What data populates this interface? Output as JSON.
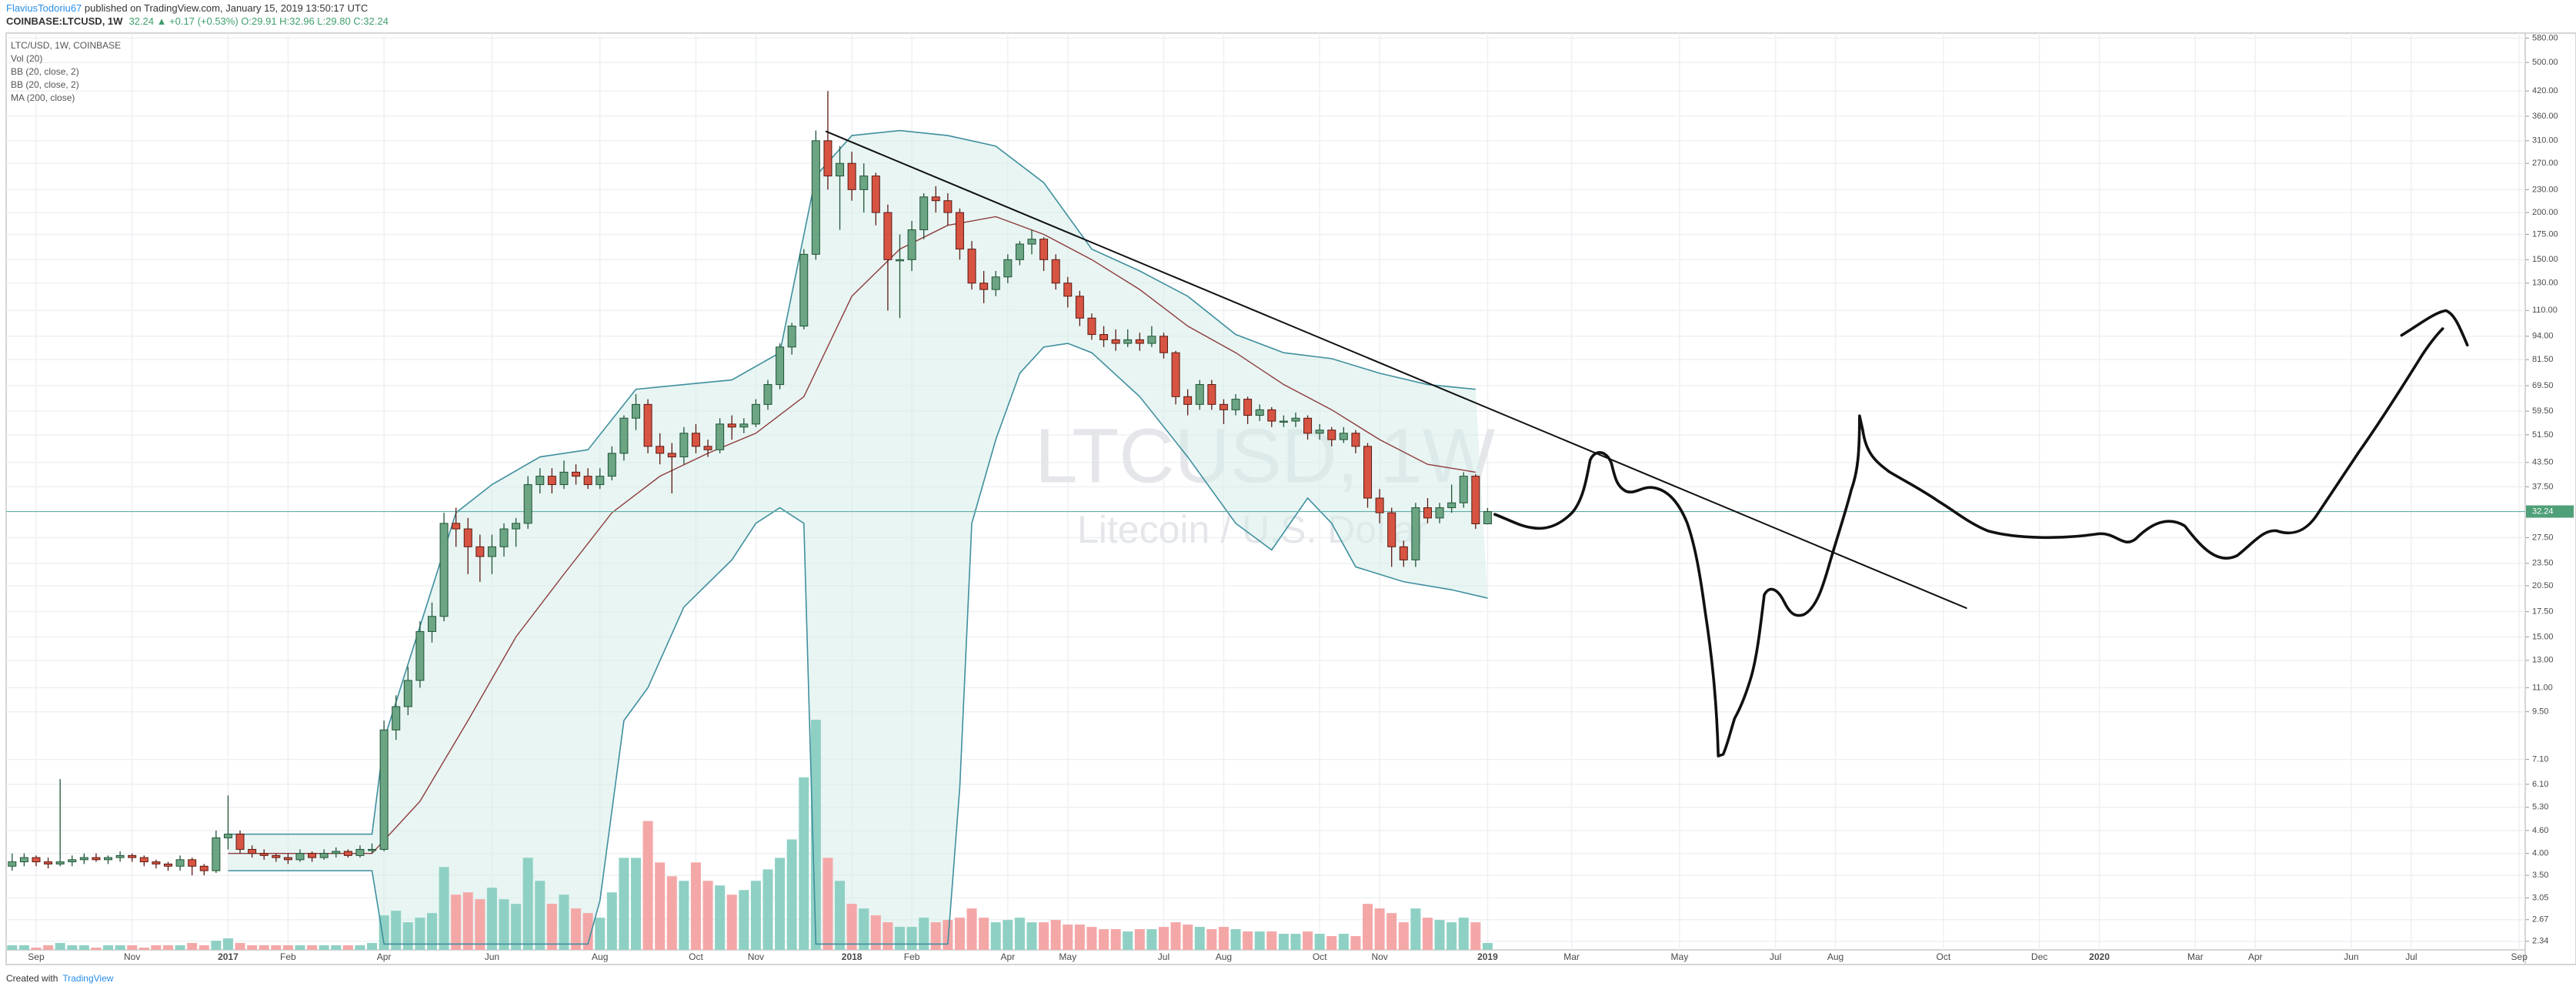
{
  "header": {
    "author": "FlaviusTodoriu67",
    "published": " published on TradingView.com, January 15, 2019 13:50:17 UTC",
    "symbol": "COINBASE:LTCUSD, 1W",
    "quote": "32.24 ▲ +0.17 (+0.53%) O:29.91 H:32.96 L:29.80 C:32.24"
  },
  "footer": {
    "prefix": "Created with",
    "brand": "TradingView"
  },
  "chart_data": {
    "type": "candlestick",
    "legend": [
      "LTC/USD, 1W, COINBASE",
      "Vol (20)",
      "BB (20, close, 2)",
      "BB (20, close, 2)",
      "MA (200, close)"
    ],
    "watermark": {
      "symbol": "LTCUSD, 1W",
      "description": "Litecoin / U.S. Dollar"
    },
    "log_scale": true,
    "grid": true,
    "up_color": "#6ba583",
    "down_color": "#d75442",
    "vol_up_color": "#8fd0c4",
    "vol_down_color": "#f4a7a7",
    "band_color": "#3f8f9e",
    "basis_color": "#8e3b3b",
    "band_fill": "#d6ece9",
    "price_line_color": "#5fb0a7",
    "xlim": [
      -0.5,
      209.5
    ],
    "xticks": [
      {
        "value": 2,
        "label": "Sep"
      },
      {
        "value": 10,
        "label": "Nov"
      },
      {
        "value": 18,
        "label": "2017"
      },
      {
        "value": 23,
        "label": "Feb"
      },
      {
        "value": 31,
        "label": "Apr"
      },
      {
        "value": 40,
        "label": "Jun"
      },
      {
        "value": 49,
        "label": "Aug"
      },
      {
        "value": 57,
        "label": "Oct"
      },
      {
        "value": 62,
        "label": "Nov"
      },
      {
        "value": 70,
        "label": "2018"
      },
      {
        "value": 75,
        "label": "Feb"
      },
      {
        "value": 83,
        "label": "Apr"
      },
      {
        "value": 88,
        "label": "May"
      },
      {
        "value": 96,
        "label": "Jul"
      },
      {
        "value": 101,
        "label": "Aug"
      },
      {
        "value": 109,
        "label": "Oct"
      },
      {
        "value": 114,
        "label": "Nov"
      },
      {
        "value": 123,
        "label": "2019"
      },
      {
        "value": 130,
        "label": "Mar"
      },
      {
        "value": 139,
        "label": "May"
      },
      {
        "value": 147,
        "label": "Jul"
      },
      {
        "value": 152,
        "label": "Aug"
      },
      {
        "value": 161,
        "label": "Oct"
      },
      {
        "value": 169,
        "label": "Dec"
      },
      {
        "value": 174,
        "label": "2020"
      },
      {
        "value": 182,
        "label": "Mar"
      },
      {
        "value": 187,
        "label": "Apr"
      },
      {
        "value": 195,
        "label": "Jun"
      },
      {
        "value": 200,
        "label": "Jul"
      },
      {
        "value": 209,
        "label": "Sep"
      }
    ],
    "ylim": [
      2.22,
      598
    ],
    "yticks": [
      {
        "value": 580,
        "label": "580.00"
      },
      {
        "value": 500,
        "label": "500.00"
      },
      {
        "value": 420,
        "label": "420.00"
      },
      {
        "value": 360,
        "label": "360.00"
      },
      {
        "value": 310,
        "label": "310.00"
      },
      {
        "value": 270,
        "label": "270.00"
      },
      {
        "value": 230,
        "label": "230.00"
      },
      {
        "value": 200,
        "label": "200.00"
      },
      {
        "value": 175,
        "label": "175.00"
      },
      {
        "value": 150,
        "label": "150.00"
      },
      {
        "value": 130,
        "label": "130.00"
      },
      {
        "value": 110,
        "label": "110.00"
      },
      {
        "value": 94,
        "label": "94.00"
      },
      {
        "value": 81.5,
        "label": "81.50"
      },
      {
        "value": 69.5,
        "label": "69.50"
      },
      {
        "value": 59.5,
        "label": "59.50"
      },
      {
        "value": 51.5,
        "label": "51.50"
      },
      {
        "value": 43.5,
        "label": "43.50"
      },
      {
        "value": 37.5,
        "label": "37.50"
      },
      {
        "value": 27.5,
        "label": "27.50"
      },
      {
        "value": 23.5,
        "label": "23.50"
      },
      {
        "value": 20.5,
        "label": "20.50"
      },
      {
        "value": 17.5,
        "label": "17.50"
      },
      {
        "value": 15,
        "label": "15.00"
      },
      {
        "value": 13,
        "label": "13.00"
      },
      {
        "value": 11,
        "label": "11.00"
      },
      {
        "value": 9.5,
        "label": "9.50"
      },
      {
        "value": 7.1,
        "label": "7.10"
      },
      {
        "value": 6.1,
        "label": "6.10"
      },
      {
        "value": 5.3,
        "label": "5.30"
      },
      {
        "value": 4.6,
        "label": "4.60"
      },
      {
        "value": 4,
        "label": "4.00"
      },
      {
        "value": 3.5,
        "label": "3.50"
      },
      {
        "value": 3.05,
        "label": "3.05"
      },
      {
        "value": 2.67,
        "label": "2.67"
      },
      {
        "value": 2.34,
        "label": "2.34"
      }
    ],
    "last_price": 32.24,
    "candles": [
      [
        3.7,
        4.0,
        3.6,
        3.8
      ],
      [
        3.8,
        4.0,
        3.7,
        3.9
      ],
      [
        3.9,
        3.95,
        3.7,
        3.8
      ],
      [
        3.8,
        3.9,
        3.65,
        3.75
      ],
      [
        3.75,
        6.3,
        3.7,
        3.8
      ],
      [
        3.8,
        3.95,
        3.7,
        3.85
      ],
      [
        3.85,
        4.0,
        3.75,
        3.9
      ],
      [
        3.9,
        4.0,
        3.8,
        3.85
      ],
      [
        3.85,
        3.95,
        3.75,
        3.9
      ],
      [
        3.9,
        4.05,
        3.8,
        3.95
      ],
      [
        3.95,
        4.0,
        3.8,
        3.9
      ],
      [
        3.9,
        3.95,
        3.7,
        3.8
      ],
      [
        3.8,
        3.85,
        3.65,
        3.75
      ],
      [
        3.75,
        3.8,
        3.6,
        3.7
      ],
      [
        3.7,
        3.95,
        3.6,
        3.85
      ],
      [
        3.85,
        3.9,
        3.5,
        3.7
      ],
      [
        3.7,
        3.75,
        3.5,
        3.6
      ],
      [
        3.6,
        4.6,
        3.55,
        4.4
      ],
      [
        4.4,
        5.7,
        4.1,
        4.5
      ],
      [
        4.5,
        4.6,
        4.0,
        4.1
      ],
      [
        4.1,
        4.2,
        3.9,
        4.0
      ],
      [
        4.0,
        4.1,
        3.85,
        3.95
      ],
      [
        3.95,
        4.0,
        3.8,
        3.9
      ],
      [
        3.9,
        4.0,
        3.75,
        3.85
      ],
      [
        3.85,
        4.1,
        3.8,
        4.0
      ],
      [
        4.0,
        4.05,
        3.8,
        3.9
      ],
      [
        3.9,
        4.1,
        3.85,
        4.0
      ],
      [
        4.0,
        4.15,
        3.9,
        4.05
      ],
      [
        4.05,
        4.1,
        3.9,
        3.95
      ],
      [
        3.95,
        4.2,
        3.9,
        4.1
      ],
      [
        4.1,
        4.25,
        4.0,
        4.1
      ],
      [
        4.1,
        9.0,
        4.05,
        8.5
      ],
      [
        8.5,
        10.5,
        8.0,
        9.8
      ],
      [
        9.8,
        12.5,
        9.3,
        11.5
      ],
      [
        11.5,
        16.5,
        11.0,
        15.5
      ],
      [
        15.5,
        18.5,
        14.5,
        17.0
      ],
      [
        17.0,
        32,
        16.5,
        30
      ],
      [
        30,
        33,
        26,
        29
      ],
      [
        29,
        31,
        22,
        26
      ],
      [
        26,
        28,
        21,
        24.5
      ],
      [
        24.5,
        28,
        22,
        26
      ],
      [
        26,
        30,
        24.5,
        29
      ],
      [
        29,
        31,
        26,
        30
      ],
      [
        30,
        40,
        29,
        38
      ],
      [
        38,
        42,
        36,
        40
      ],
      [
        40,
        42,
        36,
        38
      ],
      [
        38,
        44,
        37,
        41
      ],
      [
        41,
        43,
        38,
        40
      ],
      [
        40,
        42,
        37,
        38
      ],
      [
        38,
        42,
        37,
        40
      ],
      [
        40,
        48,
        39,
        46
      ],
      [
        46,
        58,
        44,
        57
      ],
      [
        57,
        66,
        53,
        62
      ],
      [
        62,
        64,
        46,
        48
      ],
      [
        48,
        52,
        43,
        46
      ],
      [
        46,
        49,
        36,
        45
      ],
      [
        45,
        54,
        43,
        52
      ],
      [
        52,
        55,
        46,
        48
      ],
      [
        48,
        50,
        45,
        47
      ],
      [
        47,
        57,
        46,
        55
      ],
      [
        55,
        58,
        50,
        54
      ],
      [
        54,
        57,
        52,
        55
      ],
      [
        55,
        64,
        54,
        62
      ],
      [
        62,
        72,
        60,
        70
      ],
      [
        70,
        90,
        68,
        88
      ],
      [
        88,
        102,
        84,
        100
      ],
      [
        100,
        160,
        98,
        155
      ],
      [
        155,
        330,
        150,
        310
      ],
      [
        310,
        420,
        230,
        250
      ],
      [
        250,
        300,
        180,
        270
      ],
      [
        270,
        290,
        215,
        230
      ],
      [
        230,
        270,
        200,
        250
      ],
      [
        250,
        255,
        185,
        200
      ],
      [
        200,
        210,
        110,
        150
      ],
      [
        150,
        175,
        105,
        150
      ],
      [
        150,
        190,
        140,
        180
      ],
      [
        180,
        225,
        170,
        220
      ],
      [
        220,
        235,
        200,
        215
      ],
      [
        215,
        225,
        185,
        200
      ],
      [
        200,
        205,
        150,
        160
      ],
      [
        160,
        168,
        125,
        130
      ],
      [
        130,
        140,
        115,
        125
      ],
      [
        125,
        140,
        120,
        135
      ],
      [
        135,
        155,
        130,
        150
      ],
      [
        150,
        168,
        145,
        165
      ],
      [
        165,
        180,
        155,
        170
      ],
      [
        170,
        172,
        140,
        150
      ],
      [
        150,
        155,
        125,
        130
      ],
      [
        130,
        135,
        112,
        120
      ],
      [
        120,
        124,
        100,
        105
      ],
      [
        105,
        108,
        92,
        95
      ],
      [
        95,
        100,
        88,
        92
      ],
      [
        92,
        98,
        86,
        90
      ],
      [
        90,
        98,
        88,
        92
      ],
      [
        92,
        96,
        86,
        90
      ],
      [
        90,
        100,
        88,
        94
      ],
      [
        94,
        96,
        82,
        85
      ],
      [
        85,
        86,
        62,
        65
      ],
      [
        65,
        68,
        58,
        62
      ],
      [
        62,
        72,
        60,
        70
      ],
      [
        70,
        72,
        60,
        62
      ],
      [
        62,
        64,
        55,
        60
      ],
      [
        60,
        66,
        58,
        64
      ],
      [
        64,
        65,
        55,
        58
      ],
      [
        58,
        62,
        56,
        60
      ],
      [
        60,
        61,
        54,
        56
      ],
      [
        56,
        58,
        54,
        56
      ],
      [
        56,
        59,
        54,
        57
      ],
      [
        57,
        58,
        50,
        52
      ],
      [
        52,
        55,
        50,
        53
      ],
      [
        53,
        54,
        48,
        50
      ],
      [
        50,
        54,
        49,
        52
      ],
      [
        52,
        53,
        46,
        48
      ],
      [
        48,
        49,
        33,
        35
      ],
      [
        35,
        37,
        30,
        32
      ],
      [
        32,
        33,
        23,
        26
      ],
      [
        26,
        27,
        23,
        24
      ],
      [
        24,
        34,
        23,
        33
      ],
      [
        33,
        35,
        30,
        31
      ],
      [
        31,
        34,
        30,
        33
      ],
      [
        33,
        38,
        32,
        34
      ],
      [
        34,
        41,
        33,
        40
      ],
      [
        40,
        40.5,
        29,
        29.91
      ],
      [
        29.91,
        32.96,
        29.8,
        32.24
      ]
    ],
    "volume": [
      2,
      2,
      1,
      2,
      3,
      2,
      2,
      1,
      2,
      2,
      2,
      1,
      2,
      2,
      2,
      3,
      2,
      4,
      5,
      3,
      2,
      2,
      2,
      2,
      2,
      2,
      2,
      2,
      2,
      2,
      3,
      15,
      17,
      12,
      14,
      16,
      36,
      24,
      25,
      22,
      27,
      22,
      20,
      40,
      30,
      20,
      24,
      18,
      16,
      14,
      25,
      40,
      40,
      56,
      38,
      32,
      30,
      38,
      30,
      28,
      24,
      26,
      30,
      35,
      40,
      48,
      75,
      100,
      40,
      30,
      20,
      18,
      15,
      12,
      10,
      10,
      14,
      12,
      13,
      14,
      18,
      14,
      12,
      13,
      14,
      12,
      12,
      13,
      11,
      11,
      10,
      9,
      9,
      8,
      9,
      9,
      10,
      12,
      11,
      10,
      9,
      10,
      9,
      8,
      8,
      8,
      7,
      7,
      8,
      7,
      6,
      7,
      6,
      20,
      18,
      16,
      12,
      18,
      14,
      13,
      12,
      14,
      12,
      3
    ],
    "bb_upper": {
      "x": [
        18,
        22,
        26,
        30,
        31,
        34,
        37,
        40,
        44,
        48,
        52,
        56,
        60,
        64,
        67,
        70,
        74,
        78,
        82,
        86,
        90,
        94,
        98,
        102,
        106,
        110,
        114,
        118,
        122
      ],
      "values": [
        4.5,
        4.5,
        4.5,
        4.5,
        8,
        16,
        32,
        38,
        45,
        47,
        68,
        70,
        72,
        85,
        250,
        320,
        330,
        320,
        300,
        240,
        160,
        140,
        120,
        95,
        85,
        82,
        75,
        70,
        68
      ]
    },
    "bb_lower": {
      "x": [
        18,
        22,
        26,
        30,
        31,
        48,
        49,
        51,
        53,
        56,
        60,
        62,
        64,
        66,
        67,
        78,
        79,
        80,
        82,
        84,
        86,
        88,
        90,
        94,
        98,
        102,
        105,
        108,
        110,
        112,
        116,
        120,
        123
      ],
      "values": [
        3.6,
        3.6,
        3.6,
        3.6,
        2.3,
        2.3,
        3.0,
        9,
        11,
        18,
        24,
        30,
        33,
        30,
        2.3,
        2.3,
        6,
        30,
        50,
        75,
        88,
        90,
        85,
        65,
        45,
        30,
        25.5,
        35,
        30,
        23,
        21,
        20,
        19
      ]
    },
    "bb_basis": {
      "x": [
        18,
        30,
        34,
        38,
        42,
        46,
        50,
        54,
        58,
        62,
        66,
        70,
        74,
        78,
        82,
        86,
        90,
        94,
        98,
        102,
        106,
        110,
        114,
        118,
        122
      ],
      "values": [
        4.0,
        4.0,
        5.5,
        9,
        15,
        22,
        32,
        40,
        46,
        52,
        65,
        120,
        160,
        185,
        195,
        175,
        150,
        125,
        100,
        85,
        70,
        60,
        50,
        43,
        41
      ]
    }
  }
}
